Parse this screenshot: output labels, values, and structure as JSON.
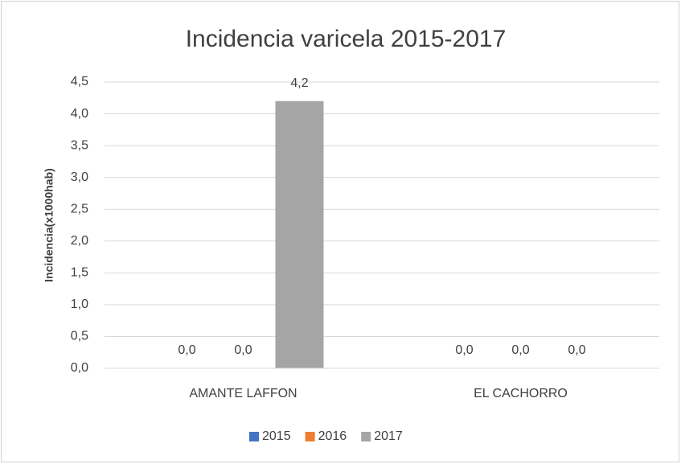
{
  "chart_data": {
    "type": "bar",
    "title": "Incidencia varicela 2015-2017",
    "y_label": "Incidencia(x1000hab)",
    "categories": [
      "AMANTE LAFFON",
      "EL CACHORRO"
    ],
    "series": [
      {
        "name": "2015",
        "color": "#4472c4",
        "values": [
          0,
          0
        ],
        "value_labels": [
          "0,0",
          "0,0"
        ]
      },
      {
        "name": "2016",
        "color": "#ed7d31",
        "values": [
          0,
          0
        ],
        "value_labels": [
          "0,0",
          "0,0"
        ]
      },
      {
        "name": "2017",
        "color": "#a5a5a5",
        "values": [
          4.2,
          0
        ],
        "value_labels": [
          "4,2",
          "0,0"
        ]
      }
    ],
    "ylim": [
      0,
      4.5
    ],
    "yticks": [
      {
        "value": 0,
        "label": "0,0"
      },
      {
        "value": 0.5,
        "label": "0,5"
      },
      {
        "value": 1,
        "label": "1,0"
      },
      {
        "value": 1.5,
        "label": "1,5"
      },
      {
        "value": 2,
        "label": "2,0"
      },
      {
        "value": 2.5,
        "label": "2,5"
      },
      {
        "value": 3,
        "label": "3,0"
      },
      {
        "value": 3.5,
        "label": "3,5"
      },
      {
        "value": 4,
        "label": "4,0"
      },
      {
        "value": 4.5,
        "label": "4,5"
      }
    ],
    "grid": true,
    "legend": "bottom"
  }
}
